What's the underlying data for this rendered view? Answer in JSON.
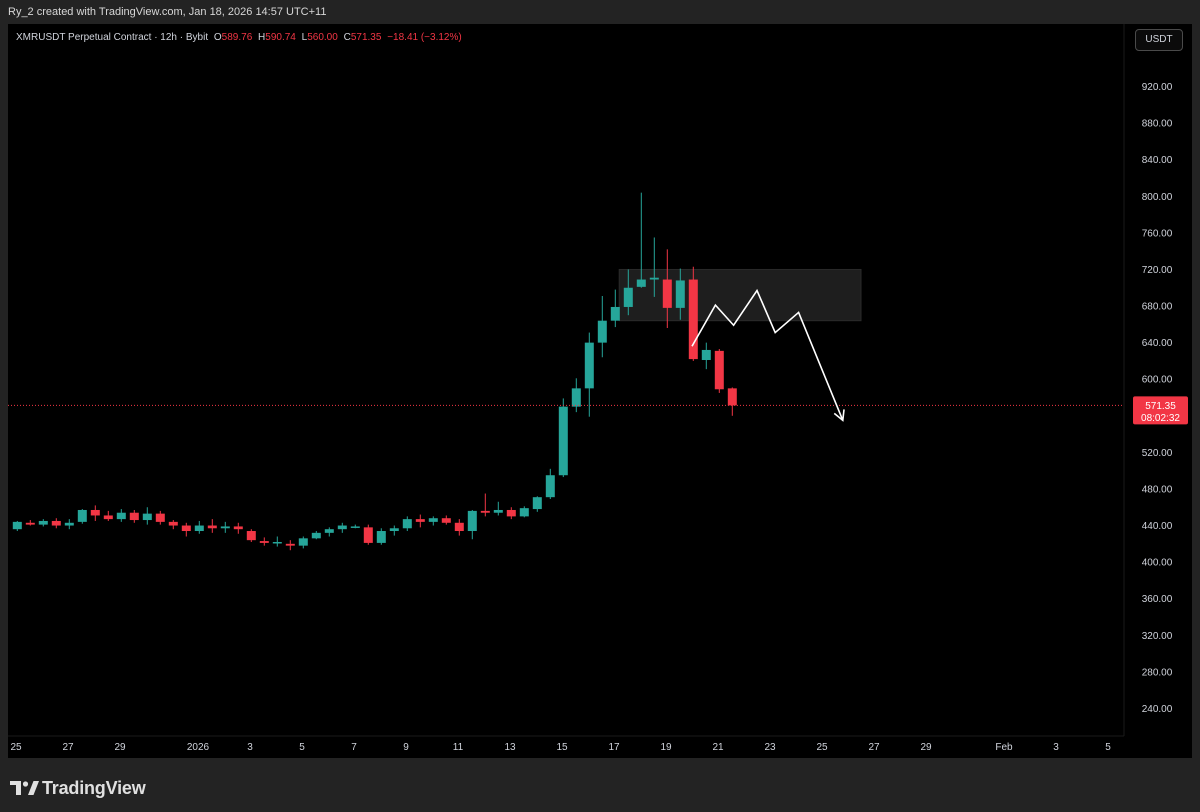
{
  "header": {
    "attribution": "Ry_2 created with TradingView.com, Jan 18, 2026 14:57 UTC+11"
  },
  "legend": {
    "symbol_line": "XMRUSDT Perpetual Contract · 12h · Bybit",
    "o_label": "O",
    "o_value": "589.76",
    "h_label": "H",
    "h_value": "590.74",
    "l_label": "L",
    "l_value": "560.00",
    "c_label": "C",
    "c_value": "571.35",
    "change": "−18.41 (−3.12%)"
  },
  "currency_button": {
    "label": "USDT"
  },
  "brand": {
    "name": "TradingView",
    "icon": "tradingview-logo-icon"
  },
  "colors": {
    "up": "#26a69a",
    "down": "#f23645",
    "background": "#000000",
    "frame": "#232323",
    "axis_text": "#d1d4dc",
    "zone": "#1e1e1e",
    "projection": "#ffffff"
  },
  "chart_data": {
    "type": "candlestick",
    "symbol": "XMRUSDT",
    "interval": "12h",
    "ylim": [
      210,
      950
    ],
    "y_ticks": [
      240,
      280,
      320,
      360,
      400,
      440,
      480,
      520,
      600,
      640,
      680,
      720,
      760,
      800,
      840,
      880,
      920
    ],
    "y_tick_labels": [
      "240.00",
      "280.00",
      "320.00",
      "360.00",
      "400.00",
      "440.00",
      "480.00",
      "520.00",
      "600.00",
      "640.00",
      "680.00",
      "720.00",
      "760.00",
      "800.00",
      "840.00",
      "880.00",
      "920.00"
    ],
    "x_labels": [
      {
        "day": 0,
        "label": "25"
      },
      {
        "day": 2,
        "label": "27"
      },
      {
        "day": 4,
        "label": "29"
      },
      {
        "day": 7,
        "label": "2026"
      },
      {
        "day": 9,
        "label": "3"
      },
      {
        "day": 11,
        "label": "5"
      },
      {
        "day": 13,
        "label": "7"
      },
      {
        "day": 15,
        "label": "9"
      },
      {
        "day": 17,
        "label": "11"
      },
      {
        "day": 19,
        "label": "13"
      },
      {
        "day": 21,
        "label": "15"
      },
      {
        "day": 23,
        "label": "17"
      },
      {
        "day": 25,
        "label": "19"
      },
      {
        "day": 27,
        "label": "21"
      },
      {
        "day": 29,
        "label": "23"
      },
      {
        "day": 31,
        "label": "25"
      },
      {
        "day": 33,
        "label": "27"
      },
      {
        "day": 35,
        "label": "29"
      },
      {
        "day": 38,
        "label": "Feb"
      },
      {
        "day": 40,
        "label": "3"
      },
      {
        "day": 42,
        "label": "5"
      }
    ],
    "candles": [
      {
        "o": 436,
        "h": 445,
        "l": 434,
        "c": 444
      },
      {
        "o": 443,
        "h": 446,
        "l": 440,
        "c": 441
      },
      {
        "o": 441,
        "h": 447,
        "l": 439,
        "c": 445
      },
      {
        "o": 445,
        "h": 448,
        "l": 437,
        "c": 440
      },
      {
        "o": 440,
        "h": 447,
        "l": 436,
        "c": 443
      },
      {
        "o": 444,
        "h": 458,
        "l": 442,
        "c": 457
      },
      {
        "o": 457,
        "h": 462,
        "l": 445,
        "c": 451
      },
      {
        "o": 451,
        "h": 456,
        "l": 445,
        "c": 447
      },
      {
        "o": 447,
        "h": 458,
        "l": 444,
        "c": 454
      },
      {
        "o": 454,
        "h": 457,
        "l": 443,
        "c": 446
      },
      {
        "o": 446,
        "h": 460,
        "l": 441,
        "c": 453
      },
      {
        "o": 453,
        "h": 456,
        "l": 441,
        "c": 444
      },
      {
        "o": 444,
        "h": 446,
        "l": 436,
        "c": 440
      },
      {
        "o": 440,
        "h": 443,
        "l": 428,
        "c": 434
      },
      {
        "o": 434,
        "h": 445,
        "l": 431,
        "c": 440
      },
      {
        "o": 440,
        "h": 447,
        "l": 432,
        "c": 437
      },
      {
        "o": 437,
        "h": 444,
        "l": 432,
        "c": 439
      },
      {
        "o": 439,
        "h": 443,
        "l": 431,
        "c": 436
      },
      {
        "o": 434,
        "h": 436,
        "l": 422,
        "c": 424
      },
      {
        "o": 423,
        "h": 427,
        "l": 418,
        "c": 421
      },
      {
        "o": 421,
        "h": 428,
        "l": 417,
        "c": 422
      },
      {
        "o": 420,
        "h": 424,
        "l": 413,
        "c": 418
      },
      {
        "o": 418,
        "h": 428,
        "l": 415,
        "c": 426
      },
      {
        "o": 426,
        "h": 434,
        "l": 425,
        "c": 432
      },
      {
        "o": 432,
        "h": 438,
        "l": 428,
        "c": 436
      },
      {
        "o": 436,
        "h": 443,
        "l": 432,
        "c": 440
      },
      {
        "o": 439,
        "h": 441,
        "l": 437,
        "c": 439
      },
      {
        "o": 438,
        "h": 441,
        "l": 419,
        "c": 421
      },
      {
        "o": 421,
        "h": 437,
        "l": 419,
        "c": 434
      },
      {
        "o": 434,
        "h": 440,
        "l": 429,
        "c": 437
      },
      {
        "o": 437,
        "h": 450,
        "l": 434,
        "c": 447
      },
      {
        "o": 447,
        "h": 452,
        "l": 438,
        "c": 444
      },
      {
        "o": 444,
        "h": 450,
        "l": 440,
        "c": 448
      },
      {
        "o": 448,
        "h": 451,
        "l": 441,
        "c": 443
      },
      {
        "o": 443,
        "h": 447,
        "l": 429,
        "c": 434
      },
      {
        "o": 434,
        "h": 457,
        "l": 425,
        "c": 456
      },
      {
        "o": 456,
        "h": 475,
        "l": 450,
        "c": 454
      },
      {
        "o": 454,
        "h": 466,
        "l": 451,
        "c": 457
      },
      {
        "o": 457,
        "h": 460,
        "l": 447,
        "c": 450
      },
      {
        "o": 450,
        "h": 461,
        "l": 449,
        "c": 459
      },
      {
        "o": 458,
        "h": 472,
        "l": 455,
        "c": 471
      },
      {
        "o": 471,
        "h": 502,
        "l": 469,
        "c": 495
      },
      {
        "o": 495,
        "h": 579,
        "l": 493,
        "c": 570
      },
      {
        "o": 570,
        "h": 601,
        "l": 564,
        "c": 590
      },
      {
        "o": 590,
        "h": 651,
        "l": 559,
        "c": 640
      },
      {
        "o": 640,
        "h": 691,
        "l": 624,
        "c": 664
      },
      {
        "o": 664,
        "h": 698,
        "l": 657,
        "c": 679
      },
      {
        "o": 679,
        "h": 720,
        "l": 670,
        "c": 700
      },
      {
        "o": 701,
        "h": 804,
        "l": 700,
        "c": 709
      },
      {
        "o": 709,
        "h": 755,
        "l": 690,
        "c": 711
      },
      {
        "o": 709,
        "h": 742,
        "l": 656,
        "c": 678
      },
      {
        "o": 678,
        "h": 721,
        "l": 665,
        "c": 708
      },
      {
        "o": 709,
        "h": 723,
        "l": 620,
        "c": 622
      },
      {
        "o": 621,
        "h": 640,
        "l": 611,
        "c": 632
      },
      {
        "o": 631,
        "h": 633,
        "l": 585,
        "c": 589
      },
      {
        "o": 590,
        "h": 591,
        "l": 560,
        "c": 571.35
      }
    ],
    "current_price": {
      "value": 571.35,
      "label": "571.35",
      "countdown": "08:02:32"
    },
    "zone": {
      "top": 720,
      "bottom": 664,
      "start_day": 23.2,
      "end_day": 32.5
    },
    "projection": [
      {
        "day": 26.0,
        "price": 636
      },
      {
        "day": 26.9,
        "price": 681
      },
      {
        "day": 27.6,
        "price": 659
      },
      {
        "day": 28.5,
        "price": 697
      },
      {
        "day": 29.2,
        "price": 651
      },
      {
        "day": 30.1,
        "price": 673
      },
      {
        "day": 31.8,
        "price": 555
      }
    ]
  }
}
